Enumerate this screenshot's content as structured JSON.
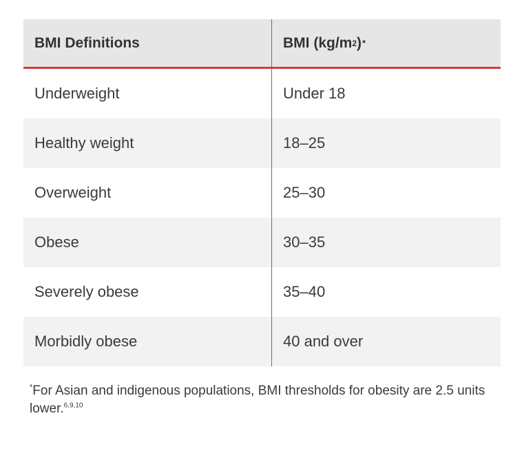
{
  "table": {
    "headers": {
      "col1": "BMI Definitions",
      "col2_prefix": "BMI (kg/m",
      "col2_superscript": "2",
      "col2_suffix": ")",
      "col2_marker": "*"
    },
    "rows": [
      {
        "definition": "Underweight",
        "bmi": "Under 18"
      },
      {
        "definition": "Healthy weight",
        "bmi": "18–25"
      },
      {
        "definition": "Overweight",
        "bmi": "25–30"
      },
      {
        "definition": "Obese",
        "bmi": "30–35"
      },
      {
        "definition": "Severely obese",
        "bmi": "35–40"
      },
      {
        "definition": "Morbidly obese",
        "bmi": "40 and over"
      }
    ]
  },
  "footnote": {
    "marker": "*",
    "text": "For Asian and indigenous populations, BMI thresholds for obesity are 2.5 units lower.",
    "references": "6,9,10"
  },
  "colors": {
    "header_background": "#e6e6e6",
    "header_rule": "#d9373c",
    "shaded_row": "#f2f2f2",
    "column_divider": "#6d6d6d"
  }
}
